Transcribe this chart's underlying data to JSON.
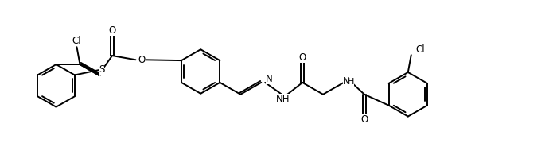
{
  "background_color": "#ffffff",
  "line_color": "#000000",
  "line_width": 1.4,
  "font_size": 8.5,
  "figsize": [
    6.9,
    1.8
  ],
  "dpi": 100,
  "xlim": [
    0,
    6.9
  ],
  "ylim": [
    0,
    1.8
  ]
}
